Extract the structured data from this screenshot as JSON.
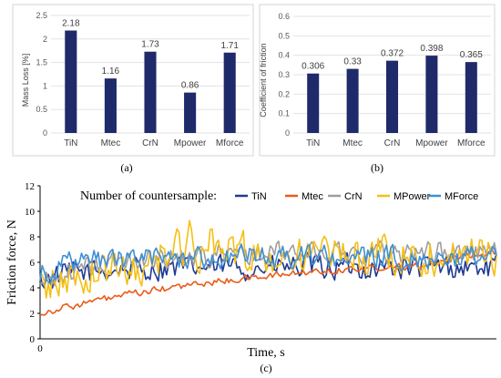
{
  "colors": {
    "bar": "#1f2a6b",
    "TiN": "#1f3a93",
    "Mtec": "#ea5c1a",
    "CrN": "#9e9e9e",
    "MPower": "#f5bf13",
    "MForce": "#3f8fd6"
  },
  "chart_data": [
    {
      "type": "bar",
      "panel": "(a)",
      "categories": [
        "TiN",
        "Mtec",
        "CrN",
        "Mpower",
        "Mforce"
      ],
      "values": [
        2.18,
        1.16,
        1.73,
        0.86,
        1.71
      ],
      "value_labels": [
        "2.18",
        "1.16",
        "1.73",
        "0.86",
        "1.71"
      ],
      "ylabel": "Mass Loss [%]",
      "ylim": [
        0,
        2.5
      ],
      "yticks": [
        "0",
        "0.5",
        "1",
        "1.5",
        "2",
        "2.5"
      ],
      "grid": true
    },
    {
      "type": "bar",
      "panel": "(b)",
      "categories": [
        "TiN",
        "Mtec",
        "CrN",
        "Mpower",
        "Mforce"
      ],
      "values": [
        0.306,
        0.33,
        0.372,
        0.398,
        0.365
      ],
      "value_labels": [
        "0.306",
        "0.33",
        "0.372",
        "0.398",
        "0.365"
      ],
      "ylabel": "Coefficient of friction",
      "ylim": [
        0,
        0.6
      ],
      "yticks": [
        "0",
        "0.1",
        "0.2",
        "0.3",
        "0.4",
        "0.5",
        "0.6"
      ],
      "grid": true
    },
    {
      "type": "line",
      "panel": "(c)",
      "xlabel": "Time, s",
      "ylabel": "Friction force, N",
      "ylim": [
        0,
        12
      ],
      "yticks": [
        "0",
        "2",
        "4",
        "6",
        "8",
        "10",
        "12"
      ],
      "xticks": [
        "0"
      ],
      "legend_title": "Number of countersample:",
      "legend_position": "top",
      "series": [
        {
          "name": "TiN",
          "key": "TiN",
          "start": 4.6,
          "mean": 5.6,
          "amp": 0.9,
          "rise": 0.1
        },
        {
          "name": "Mtec",
          "key": "Mtec",
          "start": 2.0,
          "mean": 6.9,
          "amp": 0.25,
          "rise": 0.55
        },
        {
          "name": "CrN",
          "key": "CrN",
          "start": 4.3,
          "mean": 6.8,
          "amp": 0.8,
          "rise": 0.15
        },
        {
          "name": "MPower",
          "key": "MPower",
          "start": 4.0,
          "mean": 6.6,
          "amp": 1.4,
          "rise": 0.2
        },
        {
          "name": "MForce",
          "key": "MForce",
          "start": 5.2,
          "mean": 6.4,
          "amp": 0.8,
          "rise": 0.08
        }
      ]
    }
  ],
  "captions": {
    "a": "(a)",
    "b": "(b)",
    "c": "(c)"
  }
}
